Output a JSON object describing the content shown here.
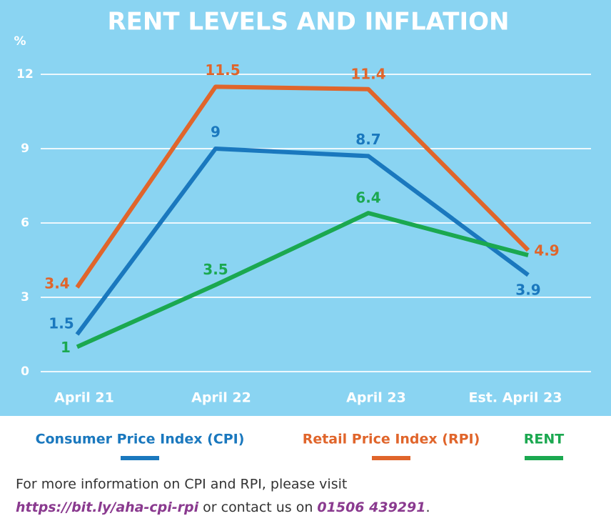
{
  "chart_data": {
    "type": "line",
    "title": "RENT LEVELS AND INFLATION",
    "y_label": "%",
    "categories": [
      "April 21",
      "April 22",
      "April 23",
      "Est. April 23"
    ],
    "series": [
      {
        "name": "Consumer Price Index (CPI)",
        "color": "#1a78be",
        "values": [
          1.5,
          9,
          8.7,
          3.9
        ],
        "value_labels": [
          "1.5",
          "9",
          "8.7",
          "3.9"
        ]
      },
      {
        "name": "Retail Price Index (RPI)",
        "color": "#e0652b",
        "values": [
          3.4,
          11.5,
          11.4,
          4.9
        ],
        "value_labels": [
          "3.4",
          "11.5",
          "11.4",
          "4.9"
        ]
      },
      {
        "name": "RENT",
        "color": "#1ba850",
        "values": [
          1,
          3.5,
          6.4,
          4.7
        ],
        "value_labels": [
          "1",
          "3.5",
          "6.4",
          null
        ]
      }
    ],
    "ylim": [
      0,
      12
    ],
    "yticks": [
      0,
      3,
      6,
      9,
      12
    ],
    "grid": true
  },
  "footer": {
    "line1": "For more information on CPI and RPI, please visit",
    "link": "https://bit.ly/aha-cpi-rpi",
    "middle": "or contact us on",
    "phone": "01506 439291",
    "end": "."
  }
}
